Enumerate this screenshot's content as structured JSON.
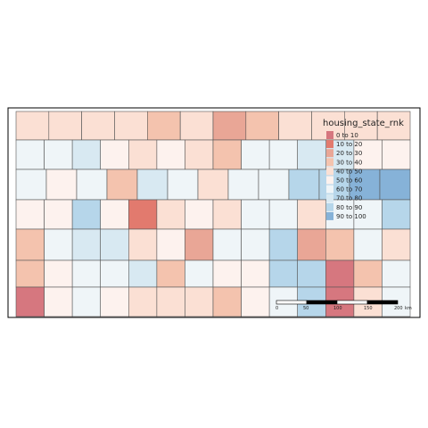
{
  "map": {
    "legend": {
      "title": "housing_state_rnk",
      "classes": [
        {
          "label": "0 to 10",
          "color": "#d6777f"
        },
        {
          "label": "10 to 20",
          "color": "#e27a6e"
        },
        {
          "label": "20 to 30",
          "color": "#e9a696"
        },
        {
          "label": "30 to 40",
          "color": "#f4c3ae"
        },
        {
          "label": "40 to 50",
          "color": "#fbe0d4"
        },
        {
          "label": "50 to 60",
          "color": "#fdf2ee"
        },
        {
          "label": "60 to 70",
          "color": "#eff5f8"
        },
        {
          "label": "70 to 80",
          "color": "#d8e9f2"
        },
        {
          "label": "80 to 90",
          "color": "#b6d6ea"
        },
        {
          "label": "90 to 100",
          "color": "#86b2d8"
        }
      ]
    },
    "scale_bar": {
      "ticks": [
        "0",
        "50",
        "100",
        "150",
        "200"
      ],
      "unit": "km"
    },
    "county_rows": [
      [
        4,
        4,
        4,
        4,
        3,
        4,
        2,
        3,
        4,
        4,
        4,
        4
      ],
      [
        6,
        6,
        7,
        5,
        4,
        5,
        4,
        3,
        6,
        6,
        7,
        7,
        5,
        5
      ],
      [
        6,
        5,
        6,
        3,
        7,
        6,
        4,
        6,
        6,
        8,
        8,
        9,
        9
      ],
      [
        5,
        5,
        8,
        5,
        1,
        4,
        5,
        4,
        6,
        6,
        4,
        6,
        6,
        8
      ],
      [
        3,
        6,
        7,
        7,
        4,
        5,
        2,
        6,
        6,
        8,
        2,
        3,
        6,
        4
      ],
      [
        3,
        5,
        6,
        6,
        7,
        3,
        6,
        5,
        5,
        8,
        8,
        0,
        3,
        6
      ],
      [
        0,
        5,
        6,
        5,
        4,
        4,
        4,
        3,
        5,
        6,
        8,
        0,
        4,
        6
      ]
    ]
  }
}
